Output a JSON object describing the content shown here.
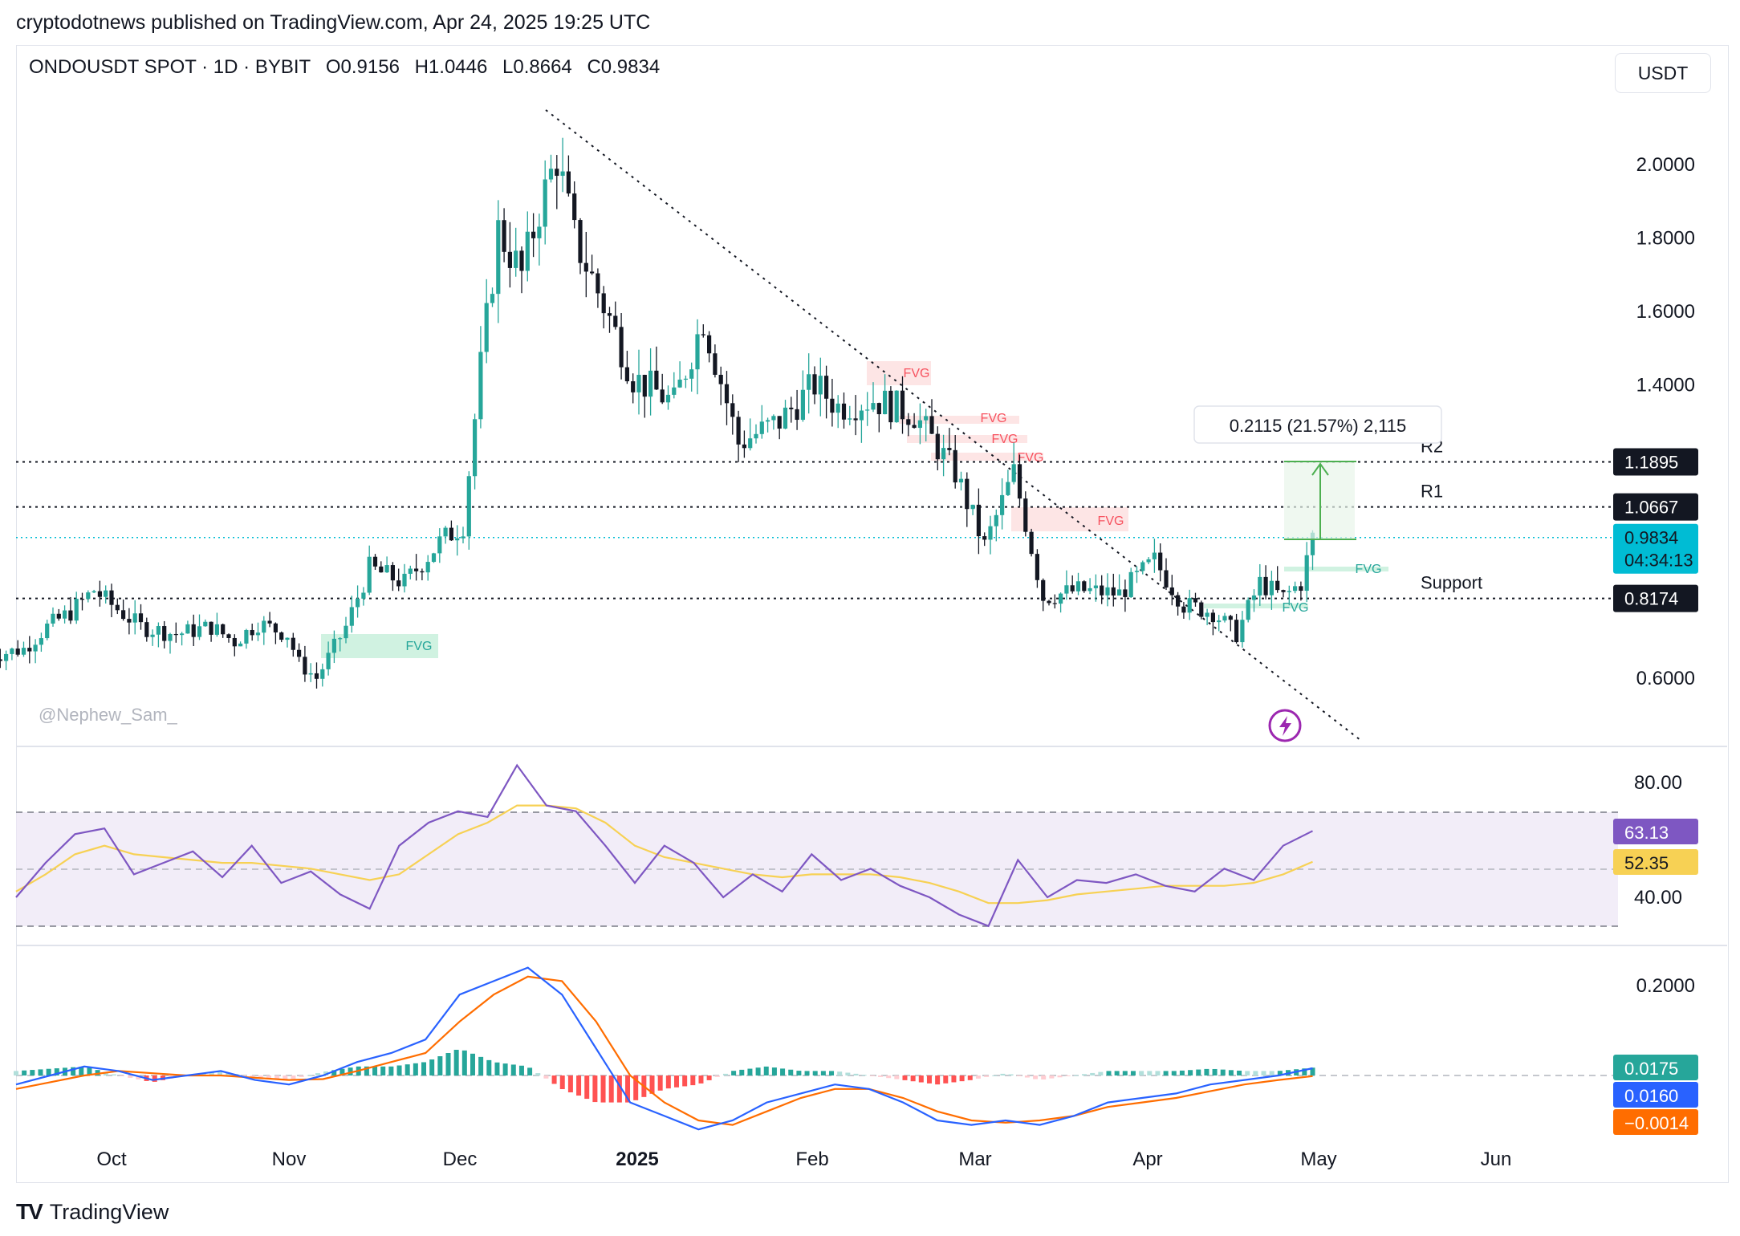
{
  "publisher": "cryptodotnews published on TradingView.com, Apr 24, 2025 19:25 UTC",
  "header": {
    "symbol": "ONDOUSDT SPOT · 1D · BYBIT",
    "open": "O0.9156",
    "high": "H1.0446",
    "low": "L0.8664",
    "close": "C0.9834"
  },
  "unit_button": "USDT",
  "watermark": "@Nephew_Sam_",
  "brand": "TradingView",
  "colors": {
    "up": "#26a69a",
    "down": "#131722",
    "rsi": "#7e57c2",
    "rsi_ma": "#f7d154",
    "macd": "#2962ff",
    "signal": "#ff6d00",
    "last_price": "#00bcd4"
  },
  "chart_data": [
    {
      "type": "candlestick",
      "title": "",
      "y_axis_ticks": [
        "2.0000",
        "1.8000",
        "1.6000",
        "1.4000",
        "0.6000"
      ],
      "ylim": [
        0.45,
        2.2
      ],
      "x_axis_ticks": [
        "Oct",
        "Nov",
        "Dec",
        "2025",
        "Feb",
        "Mar",
        "Apr",
        "May",
        "Jun"
      ],
      "levels": [
        {
          "label": "R2",
          "value": 1.1895,
          "tag": "1.1895"
        },
        {
          "label": "R1",
          "value": 1.0667,
          "tag": "1.0667"
        },
        {
          "label": "Support",
          "value": 0.8174,
          "tag": "0.8174"
        }
      ],
      "last_price": {
        "value": 0.9834,
        "tag": "0.9834",
        "countdown": "04:34:13"
      },
      "measure_label": "0.2115 (21.57%) 2,115",
      "fvg_labels": [
        "FVG",
        "FVG",
        "FVG",
        "FVG",
        "FVG",
        "FVG",
        "FVG"
      ],
      "close_path": [
        [
          "2024-09-10",
          0.66
        ],
        [
          "2024-09-16",
          0.68
        ],
        [
          "2024-09-20",
          0.74
        ],
        [
          "2024-09-24",
          0.78
        ],
        [
          "2024-09-28",
          0.84
        ],
        [
          "2024-10-01",
          0.8
        ],
        [
          "2024-10-06",
          0.74
        ],
        [
          "2024-10-12",
          0.72
        ],
        [
          "2024-10-18",
          0.74
        ],
        [
          "2024-10-22",
          0.7
        ],
        [
          "2024-10-26",
          0.75
        ],
        [
          "2024-10-31",
          0.72
        ],
        [
          "2024-11-02",
          0.64
        ],
        [
          "2024-11-05",
          0.6
        ],
        [
          "2024-11-10",
          0.74
        ],
        [
          "2024-11-14",
          0.9
        ],
        [
          "2024-11-20",
          0.86
        ],
        [
          "2024-11-26",
          0.97
        ],
        [
          "2024-11-30",
          1.02
        ],
        [
          "2024-12-03",
          1.45
        ],
        [
          "2024-12-06",
          1.82
        ],
        [
          "2024-12-10",
          1.7
        ],
        [
          "2024-12-13",
          1.88
        ],
        [
          "2024-12-16",
          2.02
        ],
        [
          "2024-12-19",
          1.8
        ],
        [
          "2024-12-25",
          1.58
        ],
        [
          "2024-12-29",
          1.42
        ],
        [
          "2025-01-05",
          1.35
        ],
        [
          "2025-01-10",
          1.58
        ],
        [
          "2025-01-16",
          1.24
        ],
        [
          "2025-01-23",
          1.3
        ],
        [
          "2025-01-29",
          1.4
        ],
        [
          "2025-02-02",
          1.34
        ],
        [
          "2025-02-08",
          1.36
        ],
        [
          "2025-02-15",
          1.32
        ],
        [
          "2025-02-22",
          1.16
        ],
        [
          "2025-02-27",
          0.96
        ],
        [
          "2025-03-04",
          1.16
        ],
        [
          "2025-03-09",
          0.82
        ],
        [
          "2025-03-15",
          0.84
        ],
        [
          "2025-03-22",
          0.83
        ],
        [
          "2025-03-28",
          0.92
        ],
        [
          "2025-04-02",
          0.8
        ],
        [
          "2025-04-07",
          0.78
        ],
        [
          "2025-04-11",
          0.72
        ],
        [
          "2025-04-15",
          0.86
        ],
        [
          "2025-04-19",
          0.82
        ],
        [
          "2025-04-22",
          0.86
        ],
        [
          "2025-04-24",
          0.9834
        ]
      ]
    },
    {
      "type": "line",
      "title": "RSI",
      "y_axis_ticks": [
        "80.00",
        "40.00"
      ],
      "ylim": [
        25,
        90
      ],
      "rsi_tag": "63.13",
      "rsi_ma_tag": "52.35",
      "series": [
        {
          "values": [
            40,
            52,
            62,
            64,
            48,
            52,
            56,
            47,
            58,
            45,
            49,
            41,
            36,
            58,
            66,
            70,
            68,
            86,
            72,
            70,
            58,
            45,
            58,
            52,
            40,
            48,
            42,
            55,
            46,
            50,
            44,
            40,
            34,
            30,
            53,
            40,
            46,
            45,
            48,
            44,
            42,
            50,
            46,
            58,
            63.13
          ]
        },
        {
          "values": [
            42,
            48,
            55,
            58,
            55,
            54,
            53,
            52,
            52,
            51,
            50,
            48,
            46,
            48,
            55,
            62,
            66,
            72,
            72,
            71,
            66,
            58,
            54,
            52,
            50,
            48,
            47,
            48,
            48,
            48,
            47,
            45,
            42,
            38,
            38,
            39,
            41,
            42,
            43,
            44,
            44,
            44,
            45,
            48,
            52.35
          ]
        }
      ]
    },
    {
      "type": "line",
      "title": "MACD",
      "y_axis_ticks": [
        "0.2000"
      ],
      "ylim": [
        -0.16,
        0.26
      ],
      "histogram_tag": "0.0175",
      "macd_tag": "0.0160",
      "signal_tag": "−0.0014",
      "series": [
        {
          "values": [
            -0.02,
            0.0,
            0.02,
            0.01,
            -0.01,
            0.0,
            0.01,
            -0.01,
            -0.02,
            0.0,
            0.03,
            0.05,
            0.08,
            0.18,
            0.21,
            0.24,
            0.18,
            0.06,
            -0.06,
            -0.09,
            -0.12,
            -0.1,
            -0.06,
            -0.04,
            -0.02,
            -0.03,
            -0.06,
            -0.1,
            -0.11,
            -0.1,
            -0.11,
            -0.09,
            -0.06,
            -0.05,
            -0.04,
            -0.02,
            -0.01,
            0.0,
            0.016
          ]
        },
        {
          "values": [
            -0.03,
            -0.015,
            0.0,
            0.01,
            0.005,
            0.0,
            0.0,
            -0.005,
            -0.01,
            -0.008,
            0.01,
            0.03,
            0.05,
            0.12,
            0.18,
            0.22,
            0.21,
            0.12,
            0.0,
            -0.06,
            -0.1,
            -0.11,
            -0.08,
            -0.05,
            -0.03,
            -0.03,
            -0.05,
            -0.08,
            -0.1,
            -0.105,
            -0.1,
            -0.09,
            -0.07,
            -0.06,
            -0.05,
            -0.035,
            -0.02,
            -0.01,
            -0.0014
          ]
        }
      ]
    }
  ]
}
